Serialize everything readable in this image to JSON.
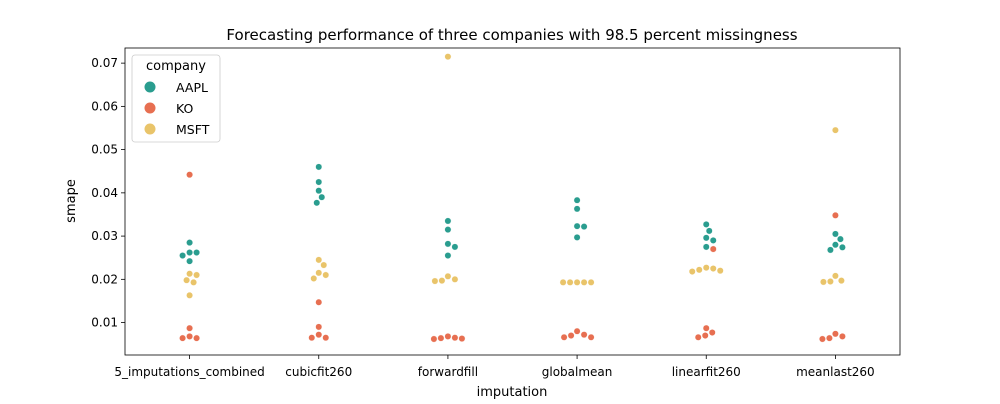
{
  "chart_data": {
    "type": "scatter",
    "title": "Forecasting performance of three companies with 98.5 percent missingness",
    "xlabel": "imputation",
    "ylabel": "smape",
    "ylim": [
      0.0025,
      0.0735
    ],
    "yticks": [
      "0.01",
      "0.02",
      "0.03",
      "0.04",
      "0.05",
      "0.06",
      "0.07"
    ],
    "categories": [
      "5_imputations_combined",
      "cubicfit260",
      "forwardfill",
      "globalmean",
      "linearfit260",
      "meanlast260"
    ],
    "legend": {
      "title": "company",
      "placement": "top-left"
    },
    "colors": {
      "AAPL": "#2a9d8f",
      "KO": "#e76f51",
      "MSFT": "#e9c46a"
    },
    "series": [
      {
        "name": "AAPL",
        "values": [
          [
            0.0285,
            0.0262,
            0.0262,
            0.0255,
            0.0242
          ],
          [
            0.046,
            0.0425,
            0.0405,
            0.039,
            0.0377
          ],
          [
            0.0335,
            0.0315,
            0.0282,
            0.0275,
            0.0255
          ],
          [
            0.0383,
            0.0363,
            0.0323,
            0.0322,
            0.0297
          ],
          [
            0.0327,
            0.0312,
            0.0296,
            0.029,
            0.0275
          ],
          [
            0.0305,
            0.0293,
            0.028,
            0.0274,
            0.0268
          ]
        ]
      },
      {
        "name": "KO",
        "values": [
          [
            0.0442,
            0.0087,
            0.0068,
            0.0064,
            0.0064
          ],
          [
            0.0147,
            0.009,
            0.0072,
            0.0065,
            0.0065
          ],
          [
            0.0068,
            0.0065,
            0.0064,
            0.0063,
            0.0062
          ],
          [
            0.008,
            0.0072,
            0.007,
            0.0066,
            0.0066
          ],
          [
            0.027,
            0.0087,
            0.0077,
            0.007,
            0.0066
          ],
          [
            0.0348,
            0.0074,
            0.0068,
            0.0064,
            0.0062
          ]
        ]
      },
      {
        "name": "MSFT",
        "values": [
          [
            0.0213,
            0.021,
            0.0198,
            0.0193,
            0.0163
          ],
          [
            0.0245,
            0.0233,
            0.0215,
            0.021,
            0.0202
          ],
          [
            0.0715,
            0.0207,
            0.02,
            0.0197,
            0.0196
          ],
          [
            0.0193,
            0.0193,
            0.0193,
            0.0193,
            0.0193
          ],
          [
            0.0227,
            0.0225,
            0.0222,
            0.022,
            0.0218
          ],
          [
            0.0545,
            0.0208,
            0.0197,
            0.0195,
            0.0194
          ]
        ]
      }
    ]
  }
}
